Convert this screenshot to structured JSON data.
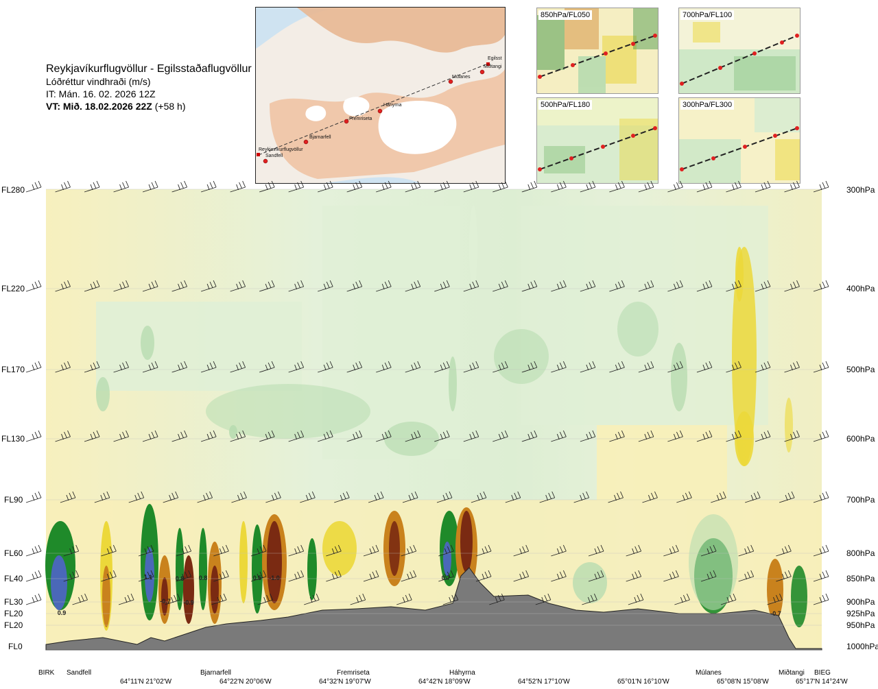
{
  "header": {
    "route": "Reykjavíkurflugvöllur - Egilsstaðaflugvöllur",
    "variable": "Lóðréttur vindhraði (m/s)",
    "it": "IT: Mán. 16. 02. 2026 12Z",
    "vt": "VT: Mið. 18.02.2026 22Z",
    "vt_offset": "(+58 h)"
  },
  "inset_map": {
    "waypoints": [
      "Reykjavíkurflugvöllur",
      "Sandfell",
      "Bjarnarfell",
      "Fremriseta",
      "Háhyrna",
      "Múlanes",
      "Miðtangi",
      "Egilsst"
    ]
  },
  "panels": [
    {
      "label": "850hPa/FL050"
    },
    {
      "label": "700hPa/FL100"
    },
    {
      "label": "500hPa/FL180"
    },
    {
      "label": "300hPa/FL300"
    }
  ],
  "chart_data": {
    "type": "heatmap",
    "title": "",
    "xlabel": "",
    "ylabel": "",
    "levels_left": [
      "FL280",
      "FL220",
      "FL170",
      "FL130",
      "FL90",
      "FL60",
      "FL40",
      "FL30",
      "FL20",
      "FL20",
      "FL0"
    ],
    "levels_right": [
      "300hPa",
      "400hPa",
      "500hPa",
      "600hPa",
      "700hPa",
      "800hPa",
      "850hPa",
      "900hPa",
      "925hPa",
      "950hPa",
      "1000hPa"
    ],
    "pressure_hpa": [
      300,
      400,
      500,
      600,
      700,
      800,
      850,
      900,
      925,
      950,
      1000
    ],
    "waypoints": [
      "BIRK",
      "Sandfell",
      "Bjarnarfell",
      "Fremriseta",
      "Háhyrna",
      "Múlanes",
      "Miðtangi",
      "BIEG"
    ],
    "coordinates": [
      "64°11'N 21°02'W",
      "64°22'N 20°06'W",
      "64°32'N 19°07'W",
      "64°42'N 18°09'W",
      "64°52'N 17°10'W",
      "65°01'N 16°10'W",
      "65°08'N 15°08'W",
      "65°17'N 14°24'W"
    ],
    "value_labels": [
      "0.9",
      "1.1",
      "-0.7",
      "0.8",
      "-0.9",
      "0.8",
      "0.5",
      "-1.0",
      "0.7",
      "-0.7"
    ],
    "colors": {
      "strong_down": "#7a2a12",
      "down": "#c9821d",
      "weak_down": "#ecd83a",
      "slight_down": "#f8efb8",
      "neutral": "#fcfce8",
      "slight_up": "#e0f0d6",
      "weak_up": "#b8dcb0",
      "up": "#1f8a2a",
      "strong_up": "#4a68b8",
      "terrain": "#7a7a7a"
    }
  }
}
